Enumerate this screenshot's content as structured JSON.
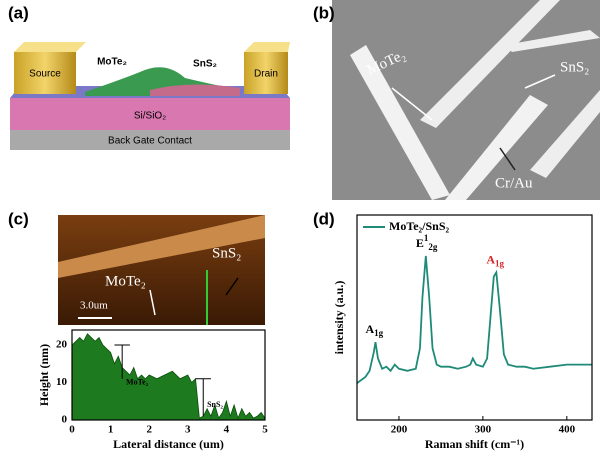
{
  "panels": {
    "a": {
      "label": "(a)",
      "source": "Source",
      "drain": "Drain",
      "mote2": "MoTe₂",
      "sns2": "SnS₂",
      "substrate": "Si/SiO₂",
      "gate": "Back Gate Contact"
    },
    "b": {
      "label": "(b)",
      "mote2": "MoTe₂",
      "sns2": "SnS₂",
      "electrode": "Cr/Au"
    },
    "c": {
      "label": "(c)",
      "sns2": "SnS₂",
      "mote2": "MoTe₂",
      "scale": "3.0um"
    },
    "d": {
      "label": "(d)"
    }
  },
  "chart_data": [
    {
      "type": "area",
      "xlabel": "Lateral distance (um)",
      "ylabel": "Height (nm)",
      "color": "#1e7a1e",
      "x": [
        0,
        0.1,
        0.2,
        0.3,
        0.4,
        0.5,
        0.6,
        0.7,
        0.8,
        0.9,
        1.0,
        1.1,
        1.2,
        1.3,
        1.4,
        1.5,
        1.6,
        1.7,
        1.8,
        1.9,
        2.0,
        2.2,
        2.4,
        2.6,
        2.8,
        3.0,
        3.1,
        3.2,
        3.3,
        3.4,
        3.5,
        3.6,
        3.7,
        3.8,
        3.9,
        4.0,
        4.1,
        4.2,
        4.3,
        4.4,
        4.5,
        4.6,
        4.7,
        4.8,
        4.9,
        5.0
      ],
      "values": [
        20,
        21,
        22,
        21,
        23,
        22,
        21,
        22,
        20,
        19,
        18,
        15,
        17,
        14,
        13,
        12,
        14,
        11,
        12,
        11,
        12,
        11,
        12,
        13,
        11,
        12,
        10,
        11,
        0.5,
        1,
        3,
        1,
        4,
        0.5,
        2,
        5,
        1,
        4,
        0.5,
        3,
        1,
        2,
        0.5,
        1,
        2,
        0.5
      ],
      "xlim": [
        0,
        5
      ],
      "ylim": [
        0,
        24
      ],
      "xticks": [
        0,
        1,
        2,
        3,
        4,
        5
      ],
      "yticks": [
        0,
        10,
        20
      ],
      "annotations": [
        "MoTe₂",
        "SnS₂"
      ]
    },
    {
      "type": "line",
      "xlabel": "Raman shift (cm⁻¹)",
      "ylabel": "intensity (a.u.)",
      "x": [
        150,
        160,
        165,
        170,
        172,
        175,
        180,
        185,
        190,
        195,
        200,
        210,
        220,
        225,
        228,
        232,
        236,
        240,
        245,
        250,
        260,
        270,
        280,
        285,
        288,
        292,
        300,
        305,
        310,
        313,
        316,
        320,
        325,
        330,
        340,
        350,
        360,
        380,
        400,
        430
      ],
      "series": [
        {
          "name": "MoTe₂/SnS₂",
          "color": "#1f8a78",
          "values": [
            18,
            21,
            24,
            33,
            38,
            30,
            25,
            26,
            24,
            27,
            25,
            24,
            25,
            35,
            60,
            80,
            60,
            35,
            27,
            26,
            26,
            25,
            26,
            27,
            30,
            27,
            26,
            30,
            55,
            70,
            72,
            55,
            32,
            27,
            26,
            26,
            25,
            26,
            27,
            27
          ]
        }
      ],
      "xlim": [
        150,
        430
      ],
      "ylim": [
        0,
        100
      ],
      "xticks": [
        200,
        300,
        400
      ],
      "peaks": [
        {
          "text": "A",
          "sub": "1g"
        },
        {
          "text": "E",
          "sup": "1",
          "sub": "2g"
        },
        {
          "text": "A",
          "sub": "1g",
          "color": "#d62728"
        }
      ]
    }
  ]
}
